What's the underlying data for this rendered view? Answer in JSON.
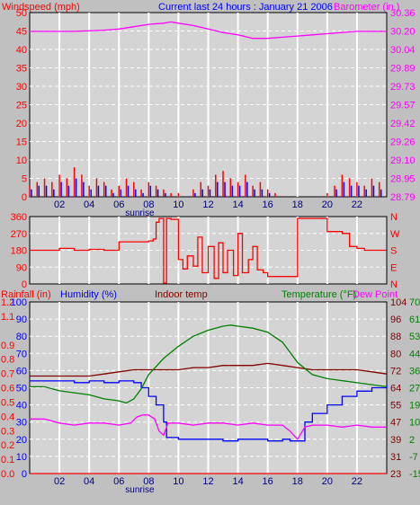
{
  "header": {
    "left_label": "Windspeed (mph)",
    "center_label": "Current last 24 hours : January 21 2006",
    "right_label": "Barometer (in.)"
  },
  "colors": {
    "background": "#c0c0c0",
    "plot_area": "#d4d4d4",
    "frame": "#000000",
    "grid": "#ffffff",
    "wind_speed": "#ff0000",
    "wind_gust": "#0000ff",
    "barometer": "#ff00ff",
    "direction": "#ff0000",
    "humidity": "#0000ff",
    "indoor_temp": "#800000",
    "temperature": "#008000",
    "dew_point": "#ff00ff",
    "rainfall": "#ff0000",
    "sunrise_text": "#000080"
  },
  "x_axis": {
    "ticks": [
      "02",
      "04",
      "06",
      "08",
      "10",
      "12",
      "14",
      "16",
      "18",
      "20",
      "22"
    ],
    "sunrise_label": "sunrise"
  },
  "chart_data": [
    {
      "type": "line",
      "name": "wind-barometer",
      "grid": true,
      "x_range": [
        0,
        24
      ],
      "y_left": {
        "label": "Windspeed (mph)",
        "ticks": [
          "0",
          "5",
          "10",
          "15",
          "20",
          "25",
          "30",
          "35",
          "40",
          "45",
          "50"
        ],
        "range": [
          0,
          50
        ]
      },
      "y_right": {
        "label": "Barometer (in.)",
        "ticks": [
          "28.79",
          "28.95",
          "29.10",
          "29.26",
          "29.42",
          "29.57",
          "29.73",
          "29.89",
          "30.04",
          "30.20",
          "30.36"
        ],
        "range": [
          28.79,
          30.36
        ]
      },
      "series": [
        {
          "name": "Barometer",
          "axis": "right",
          "color": "#ff00ff",
          "x": [
            0,
            3,
            5,
            6,
            7,
            8,
            9,
            9.5,
            10,
            11,
            12,
            13,
            14,
            15,
            16,
            17,
            18,
            19,
            20,
            22,
            24
          ],
          "y": [
            30.2,
            30.2,
            30.21,
            30.22,
            30.24,
            30.26,
            30.27,
            30.28,
            30.27,
            30.25,
            30.22,
            30.19,
            30.17,
            30.14,
            30.14,
            30.15,
            30.16,
            30.17,
            30.18,
            30.2,
            30.2
          ]
        },
        {
          "name": "Windspeed",
          "axis": "left",
          "color": "#ff0000",
          "x": [
            0,
            0.5,
            1,
            1.5,
            2,
            2.5,
            3,
            3.5,
            4,
            4.5,
            5,
            5.5,
            6,
            6.5,
            7,
            7.5,
            8,
            8.5,
            9,
            9.5,
            10,
            10.5,
            11,
            11.5,
            12,
            12.5,
            13,
            13.5,
            14,
            14.5,
            15,
            15.5,
            16,
            16.5,
            17,
            17.5,
            18,
            18.5,
            19,
            19.5,
            20,
            20.5,
            21,
            21.5,
            22,
            22.5,
            23,
            23.5
          ],
          "y": [
            3,
            4,
            5,
            4,
            6,
            5,
            8,
            6,
            3,
            5,
            4,
            2,
            3,
            5,
            4,
            2,
            4,
            3,
            2,
            1,
            1,
            0,
            2,
            4,
            3,
            6,
            7,
            5,
            4,
            6,
            3,
            4,
            2,
            1,
            0,
            0,
            0,
            0,
            0,
            0,
            1,
            3,
            6,
            5,
            4,
            3,
            5,
            4
          ]
        },
        {
          "name": "Gust",
          "axis": "left",
          "color": "#0000ff",
          "x": [
            0,
            0.5,
            1,
            1.5,
            2,
            2.5,
            3,
            3.5,
            4,
            4.5,
            5,
            5.5,
            6,
            6.5,
            7,
            7.5,
            8,
            8.5,
            9,
            9.5,
            10,
            10.5,
            11,
            11.5,
            12,
            12.5,
            13,
            13.5,
            14,
            14.5,
            15,
            15.5,
            16,
            16.5,
            17,
            17.5,
            18,
            18.5,
            19,
            19.5,
            20,
            20.5,
            21,
            21.5,
            22,
            22.5,
            23,
            23.5
          ],
          "y": [
            2,
            3,
            3,
            2,
            4,
            3,
            5,
            4,
            2,
            3,
            3,
            1,
            2,
            3,
            2,
            1,
            3,
            2,
            1,
            0,
            0,
            0,
            1,
            2,
            2,
            4,
            4,
            3,
            3,
            4,
            2,
            2,
            1,
            0,
            0,
            0,
            0,
            0,
            0,
            0,
            0,
            2,
            4,
            3,
            3,
            2,
            3,
            2
          ]
        }
      ]
    },
    {
      "type": "line",
      "name": "wind-direction",
      "grid": true,
      "x_range": [
        0,
        24
      ],
      "y_left": {
        "ticks": [
          "0",
          "90",
          "180",
          "270",
          "360"
        ],
        "range": [
          0,
          360
        ]
      },
      "y_right": {
        "ticks": [
          "N",
          "E",
          "S",
          "W",
          "N"
        ]
      },
      "series": [
        {
          "name": "Direction",
          "axis": "left",
          "color": "#ff0000",
          "x": [
            0,
            1,
            2,
            3,
            4,
            5,
            6,
            7,
            8,
            8.3,
            8.5,
            8.7,
            9,
            9.2,
            9.5,
            10,
            10.3,
            10.6,
            11,
            11.3,
            11.6,
            12,
            12.4,
            12.7,
            13,
            13.3,
            13.7,
            14,
            14.3,
            14.7,
            15,
            15.3,
            15.7,
            16,
            16.5,
            17,
            17.5,
            18,
            18.5,
            19,
            19.5,
            20,
            20.5,
            21,
            21.5,
            22,
            22.5,
            23,
            24
          ],
          "y": [
            180,
            180,
            190,
            180,
            185,
            180,
            225,
            225,
            230,
            240,
            330,
            350,
            5,
            350,
            345,
            130,
            80,
            150,
            95,
            250,
            60,
            200,
            30,
            220,
            60,
            180,
            45,
            270,
            60,
            130,
            200,
            75,
            60,
            40,
            40,
            40,
            40,
            350,
            350,
            350,
            350,
            280,
            280,
            270,
            200,
            190,
            180,
            180,
            180
          ]
        }
      ]
    },
    {
      "type": "line",
      "name": "humidity-temperature",
      "grid": true,
      "x_range": [
        0,
        24
      ],
      "labels": [
        "Rainfall (in)",
        "Humidity (%)",
        "Indoor temp",
        "Temperature (°F)",
        "Dew Point"
      ],
      "y_rainfall": {
        "ticks": [
          "0.0",
          "0.1",
          "0.2",
          "0.3",
          "0.4",
          "0.5",
          "0.6",
          "0.7",
          "0.8",
          "0.9",
          "1.1",
          "1.2"
        ],
        "range": [
          0,
          1.2
        ]
      },
      "y_humidity": {
        "ticks": [
          "0",
          "10",
          "20",
          "30",
          "40",
          "50",
          "60",
          "70",
          "80",
          "90",
          "100"
        ],
        "range": [
          0,
          100
        ]
      },
      "y_indoor": {
        "ticks": [
          "23",
          "31",
          "39",
          "47",
          "55",
          "64",
          "72",
          "80",
          "88",
          "96",
          "104"
        ],
        "range": [
          23,
          104
        ]
      },
      "y_temperature": {
        "ticks": [
          "-15",
          "-7",
          "2",
          "10",
          "19",
          "27",
          "36",
          "44",
          "53",
          "61",
          "70"
        ],
        "range": [
          -15,
          70
        ]
      },
      "series": [
        {
          "name": "Humidity",
          "axis": "humidity",
          "color": "#0000ff",
          "x": [
            0,
            1,
            2,
            3,
            4,
            5,
            6,
            7,
            7.5,
            8,
            8.5,
            9,
            9.2,
            9.5,
            10,
            11,
            12,
            13,
            14,
            15,
            16,
            17,
            17.5,
            18,
            18.5,
            19,
            20,
            21,
            22,
            23,
            24
          ],
          "y": [
            54,
            54,
            54,
            53,
            54,
            53,
            54,
            53,
            50,
            45,
            40,
            30,
            21,
            21,
            20,
            20,
            20,
            19,
            20,
            20,
            19,
            20,
            19,
            19,
            30,
            35,
            40,
            45,
            48,
            50,
            52
          ]
        },
        {
          "name": "Indoor temp",
          "axis": "indoor",
          "color": "#800000",
          "x": [
            0,
            2,
            3,
            4,
            5,
            6,
            7,
            8,
            9,
            10,
            11,
            12,
            13,
            14,
            15,
            16,
            17,
            18,
            19,
            20,
            21,
            22,
            23,
            24
          ],
          "y": [
            69,
            69,
            69,
            69,
            70,
            71,
            72,
            72,
            72,
            72,
            73,
            73,
            74,
            74,
            74,
            75,
            74,
            73,
            72,
            72,
            72,
            72,
            71,
            70
          ]
        },
        {
          "name": "Temperature",
          "axis": "temperature",
          "color": "#008000",
          "x": [
            0,
            1,
            2,
            3,
            4,
            5,
            6,
            6.5,
            7,
            7.5,
            8,
            8.5,
            9,
            10,
            11,
            12,
            13,
            13.5,
            14,
            15,
            16,
            17,
            18,
            19,
            20,
            21,
            22,
            23,
            24
          ],
          "y": [
            28,
            28,
            26,
            25,
            24,
            22,
            21,
            20,
            22,
            27,
            34,
            38,
            42,
            48,
            53,
            56,
            58,
            58.5,
            58,
            57,
            55,
            50,
            40,
            34,
            32,
            31,
            30,
            29,
            28
          ]
        },
        {
          "name": "Dew Point",
          "axis": "temperature",
          "color": "#ff00ff",
          "x": [
            0,
            1,
            2,
            3,
            4,
            5,
            6,
            6.8,
            7.2,
            7.6,
            8,
            8.4,
            8.7,
            9,
            9.3,
            10,
            11,
            12,
            13,
            14,
            15,
            16,
            17,
            17.5,
            18,
            18.5,
            19,
            20,
            21,
            22,
            23,
            24
          ],
          "y": [
            12,
            12,
            10,
            9,
            10,
            10,
            9,
            10,
            13,
            14,
            14,
            12,
            6,
            4,
            10,
            10,
            9,
            10,
            10,
            9,
            10,
            9,
            9,
            6,
            2,
            8,
            9,
            9,
            8,
            9,
            8,
            8
          ]
        },
        {
          "name": "Rainfall",
          "axis": "rainfall",
          "color": "#ff0000",
          "x": [
            0,
            24
          ],
          "y": [
            0,
            0
          ]
        }
      ]
    }
  ]
}
